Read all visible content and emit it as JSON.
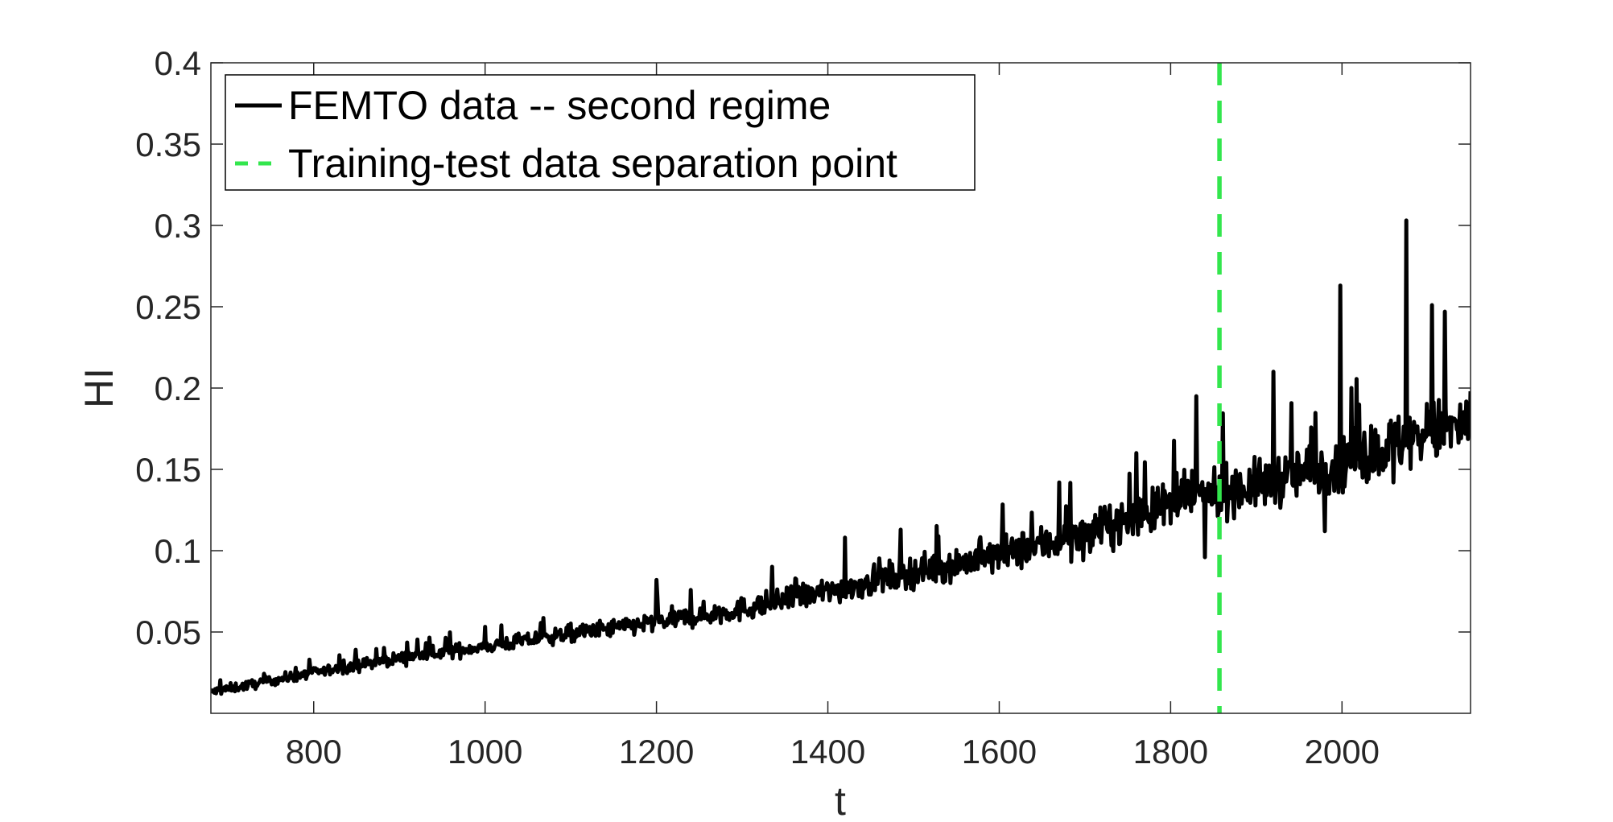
{
  "chart_data": {
    "type": "line",
    "xlabel": "t",
    "ylabel": "HI",
    "xlim": [
      680,
      2150
    ],
    "ylim": [
      0.0,
      0.4
    ],
    "x_ticks": [
      800,
      1000,
      1200,
      1400,
      1600,
      1800,
      2000
    ],
    "x_tick_labels": [
      "800",
      "1000",
      "1200",
      "1400",
      "1600",
      "1800",
      "2000"
    ],
    "y_ticks": [
      0.05,
      0.1,
      0.15,
      0.2,
      0.25,
      0.3,
      0.35,
      0.4
    ],
    "y_tick_labels": [
      "0.05",
      "0.1",
      "0.15",
      "0.2",
      "0.25",
      "0.3",
      "0.35",
      "0.4"
    ],
    "grid": false,
    "legend_position": "top-left",
    "series": [
      {
        "name": "FEMTO data -- second regime",
        "color": "#000000",
        "style": "solid",
        "trend_x": [
          680,
          800,
          900,
          1000,
          1100,
          1200,
          1300,
          1400,
          1500,
          1600,
          1700,
          1800,
          1850,
          1900,
          2000,
          2100,
          2150
        ],
        "trend_y": [
          0.013,
          0.025,
          0.034,
          0.041,
          0.049,
          0.056,
          0.064,
          0.075,
          0.087,
          0.097,
          0.11,
          0.128,
          0.136,
          0.14,
          0.155,
          0.172,
          0.178
        ],
        "peaks": [
          {
            "x": 1200,
            "y": 0.082
          },
          {
            "x": 1420,
            "y": 0.108
          },
          {
            "x": 1670,
            "y": 0.142
          },
          {
            "x": 1760,
            "y": 0.16
          },
          {
            "x": 1830,
            "y": 0.195
          },
          {
            "x": 1920,
            "y": 0.21
          },
          {
            "x": 1998,
            "y": 0.263
          },
          {
            "x": 2075,
            "y": 0.303
          },
          {
            "x": 2105,
            "y": 0.251
          },
          {
            "x": 2120,
            "y": 0.247
          }
        ],
        "troughs": [
          {
            "x": 1840,
            "y": 0.096
          },
          {
            "x": 1980,
            "y": 0.112
          },
          {
            "x": 2060,
            "y": 0.142
          }
        ],
        "end_value": {
          "x": 2150,
          "y": 0.198
        }
      },
      {
        "name": "Training-test data separation point",
        "color": "#33e64d",
        "style": "dashed",
        "x": 1857
      }
    ]
  }
}
